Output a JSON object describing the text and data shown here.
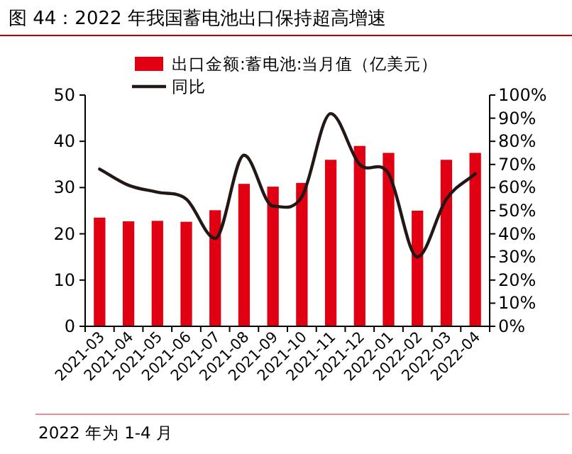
{
  "chart_data": {
    "type": "bar",
    "title": "图 44：2022 年我国蓄电池出口保持超高增速",
    "categories": [
      "2021-03",
      "2021-04",
      "2021-05",
      "2021-06",
      "2021-07",
      "2021-08",
      "2021-09",
      "2021-10",
      "2021-11",
      "2021-12",
      "2022-01",
      "2022-02",
      "2022-03",
      "2022-04"
    ],
    "series": [
      {
        "name": "出口金额:蓄电池:当月值（亿美元）",
        "color": "#e00012",
        "values": [
          23.5,
          22.7,
          22.8,
          22.6,
          25.1,
          30.8,
          30.2,
          31.0,
          36.0,
          39.0,
          37.5,
          25.0,
          36.0,
          37.5
        ]
      },
      {
        "name": "同比",
        "type": "line",
        "axis": "y2",
        "color": "#231815",
        "values": [
          68,
          61,
          58,
          55,
          38,
          74,
          52,
          56,
          92,
          70,
          66,
          30,
          55,
          66
        ]
      }
    ],
    "ylim": [
      0,
      50
    ],
    "yticks": [
      0,
      10,
      20,
      30,
      40,
      50
    ],
    "y2lim": [
      0,
      100
    ],
    "y2ticks": [
      {
        "value": 0,
        "label": "0%"
      },
      {
        "value": 10,
        "label": "10%"
      },
      {
        "value": 20,
        "label": "20%"
      },
      {
        "value": 30,
        "label": "30%"
      },
      {
        "value": 40,
        "label": "40%"
      },
      {
        "value": 50,
        "label": "50%"
      },
      {
        "value": 60,
        "label": "60%"
      },
      {
        "value": 70,
        "label": "70%"
      },
      {
        "value": 80,
        "label": "80%"
      },
      {
        "value": 90,
        "label": "90%"
      },
      {
        "value": 100,
        "label": "100%"
      }
    ],
    "legend": "top",
    "line_style": "solid",
    "marker": "none",
    "annotations": [
      "2022 年为 1-4 月"
    ]
  }
}
